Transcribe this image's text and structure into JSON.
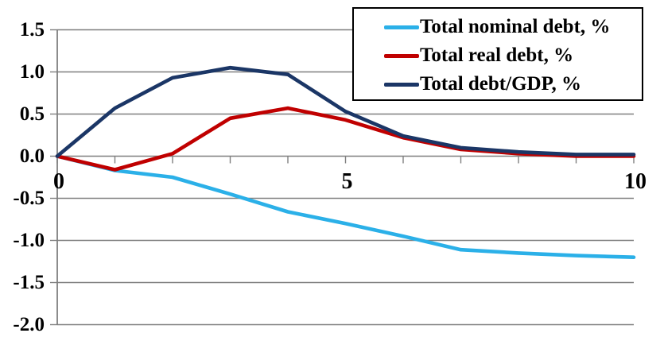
{
  "chart_data": {
    "type": "line",
    "title": "",
    "xlabel": "",
    "ylabel": "",
    "x": [
      0,
      1,
      2,
      3,
      4,
      5,
      6,
      7,
      8,
      9,
      10
    ],
    "series": [
      {
        "name": "Total nominal debt, %",
        "color": "#2bb0e8",
        "values": [
          0.0,
          -0.17,
          -0.25,
          -0.45,
          -0.66,
          -0.8,
          -0.95,
          -1.11,
          -1.15,
          -1.18,
          -1.2
        ]
      },
      {
        "name": "Total real debt, %",
        "color": "#c00000",
        "values": [
          0.0,
          -0.16,
          0.03,
          0.45,
          0.57,
          0.43,
          0.22,
          0.08,
          0.03,
          0.0,
          0.0
        ]
      },
      {
        "name": "Total debt/GDP, %",
        "color": "#1b3666",
        "values": [
          0.0,
          0.57,
          0.93,
          1.05,
          0.97,
          0.53,
          0.24,
          0.1,
          0.05,
          0.02,
          0.02
        ]
      }
    ],
    "xlim": [
      0,
      10
    ],
    "ylim": [
      -2.0,
      1.5
    ],
    "y_tick_labels": [
      "1.5",
      "1.0",
      "0.5",
      "0.0",
      "-0.5",
      "-1.0",
      "-1.5",
      "-2.0"
    ],
    "y_tick_values": [
      1.5,
      1.0,
      0.5,
      0.0,
      -0.5,
      -1.0,
      -1.5,
      -2.0
    ],
    "x_minor_tick_values": [
      0,
      1,
      2,
      3,
      4,
      5,
      6,
      7,
      8,
      9,
      10
    ],
    "x_tick_labels": [
      {
        "value": 0,
        "label": "0"
      },
      {
        "value": 5,
        "label": "5"
      },
      {
        "value": 10,
        "label": "10"
      }
    ],
    "grid": true,
    "legend_position": "top-right"
  },
  "colors": {
    "background": "#ffffff",
    "gridline": "#7f7f7f",
    "axis": "#7f7f7f",
    "tick": "#7f7f7f",
    "text": "#000000",
    "legend_border": "#000000",
    "legend_background": "#ffffff"
  }
}
